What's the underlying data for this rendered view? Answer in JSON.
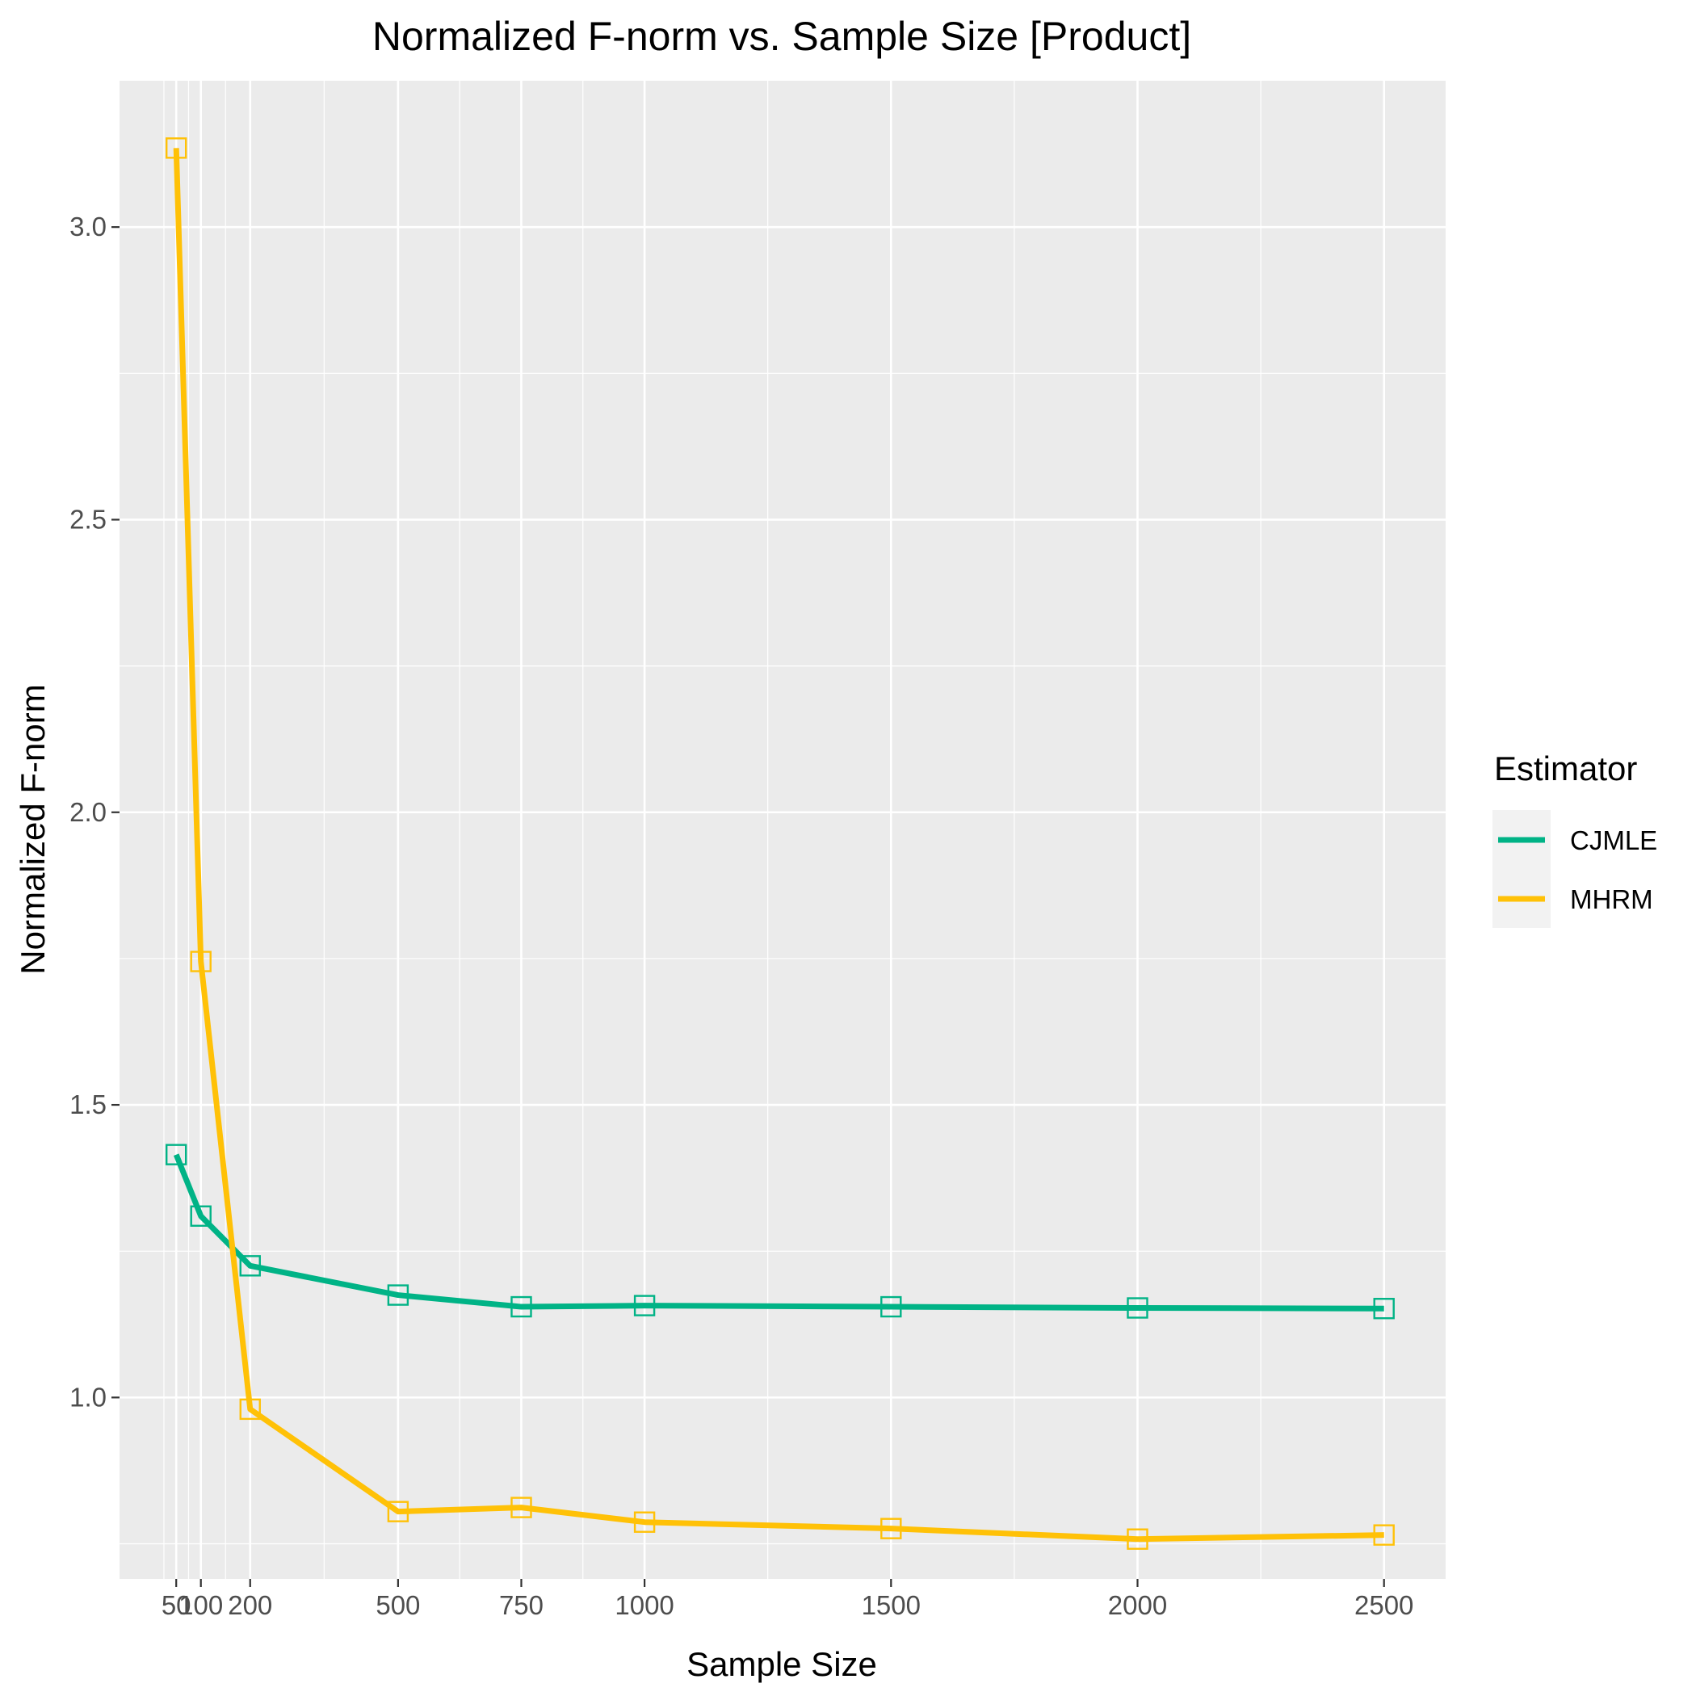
{
  "chart_data": {
    "type": "line",
    "title": "Normalized F-norm vs. Sample Size [Product]",
    "xlabel": "Sample Size",
    "ylabel": "Normalized F-norm",
    "x": [
      50,
      100,
      200,
      500,
      750,
      1000,
      1500,
      2000,
      2500
    ],
    "x_tick_labels": [
      "50",
      "100",
      "200",
      "500",
      "750",
      "1000",
      "1500",
      "2000",
      "2500"
    ],
    "y_ticks": [
      1.0,
      1.5,
      2.0,
      2.5,
      3.0
    ],
    "y_tick_labels": [
      "1.0",
      "1.5",
      "2.0",
      "2.5",
      "3.0"
    ],
    "xlim": [
      -65,
      2625
    ],
    "ylim": [
      0.69,
      3.25
    ],
    "grid": true,
    "marker": "open-square",
    "legend_title": "Estimator",
    "legend_position": "right",
    "series": [
      {
        "name": "CJMLE",
        "color": "#00b386",
        "values": [
          1.415,
          1.31,
          1.225,
          1.175,
          1.155,
          1.157,
          1.155,
          1.153,
          1.152
        ]
      },
      {
        "name": "MHRM",
        "color": "#ffc107",
        "values": [
          3.135,
          1.745,
          0.98,
          0.805,
          0.812,
          0.787,
          0.776,
          0.758,
          0.765
        ]
      }
    ]
  }
}
